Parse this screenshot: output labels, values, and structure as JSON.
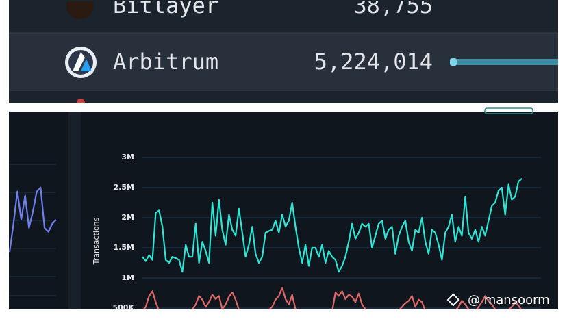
{
  "table": {
    "rows": [
      [
        "Bitlayer",
        "38,755"
      ],
      [
        "Arbitrum",
        "5,224,014"
      ]
    ]
  },
  "watermark": "@ mansoorm",
  "chart_data": [
    {
      "type": "line",
      "y_label": "Transactions",
      "ylim": [
        400000,
        3200000
      ],
      "yticks": [
        {
          "value": 500000,
          "label": "500K"
        },
        {
          "value": 1000000,
          "label": "1M"
        },
        {
          "value": 1500000,
          "label": "1.5M"
        },
        {
          "value": 2000000,
          "label": "2M"
        },
        {
          "value": 2500000,
          "label": "2.5M"
        },
        {
          "value": 3000000,
          "label": "3M"
        }
      ],
      "grid": true,
      "series": [
        {
          "color": "#2ee6d6",
          "values": [
            1350000,
            1280000,
            1380000,
            1300000,
            2080000,
            2120000,
            1850000,
            1300000,
            1250000,
            1350000,
            1330000,
            1300000,
            1100000,
            1550000,
            1350000,
            1350000,
            1900000,
            1250000,
            1600000,
            1450000,
            1250000,
            2250000,
            1700000,
            2300000,
            1800000,
            1550000,
            2050000,
            1800000,
            1700000,
            2150000,
            1750000,
            1350000,
            1550000,
            1850000,
            1400000,
            1250000,
            1350000,
            1750000,
            1780000,
            1800000,
            1950000,
            1750000,
            2050000,
            1850000,
            1950000,
            2250000,
            1850000,
            1500000,
            1250000,
            1550000,
            1200000,
            1500000,
            1500000,
            1350000,
            1550000,
            1250000,
            1450000,
            1350000,
            1300000,
            1100000,
            1200000,
            1350000,
            1600000,
            1900000,
            1650000,
            1750000,
            1900000,
            1850000,
            1900000,
            1500000,
            1700000,
            1900000,
            1950000,
            1650000,
            1800000,
            1850000,
            1400000,
            1700000,
            1850000,
            1950000,
            1600000,
            1450000,
            1800000,
            1750000,
            2000000,
            1600000,
            1400000,
            1800000,
            1750000,
            1550000,
            1300000,
            1750000,
            1850000,
            2050000,
            1600000,
            1850000,
            1700000,
            2350000,
            1750000,
            1650000,
            1800000,
            1600000,
            1850000,
            1700000,
            1950000,
            2200000,
            2250000,
            2450000,
            2500000,
            2050000,
            2550000,
            2300000,
            2350000,
            2600000,
            2650000
          ]
        },
        {
          "color": "#e06a6a",
          "values": [
            450000,
            520000,
            700000,
            780000,
            600000,
            450000,
            420000,
            430000,
            460000,
            440000,
            420000,
            430000,
            440000,
            420000,
            450000,
            480000,
            560000,
            700000,
            640000,
            520000,
            600000,
            720000,
            650000,
            700000,
            480000,
            560000,
            690000,
            760000,
            640000,
            470000,
            430000,
            420000,
            440000,
            450000,
            420000,
            430000,
            410000,
            440000,
            470000,
            520000,
            640000,
            700000,
            840000,
            650000,
            560000,
            720000,
            480000,
            430000,
            420000,
            440000,
            420000,
            430000,
            450000,
            440000,
            420000,
            410000,
            430000,
            440000,
            760000,
            700000,
            780000,
            650000,
            720000,
            690000,
            600000,
            740000,
            560000,
            480000,
            430000,
            420000,
            440000,
            430000,
            420000,
            410000,
            430000,
            450000,
            440000,
            460000,
            520000,
            580000,
            620000,
            700000,
            520000,
            640000,
            600000,
            450000,
            430000,
            420000,
            440000,
            450000,
            420000,
            440000,
            430000,
            450000,
            460000,
            520000,
            620000,
            560000,
            480000,
            430000,
            440000,
            520000,
            600000,
            700000,
            620000,
            560000,
            480000,
            440000,
            430000,
            450000,
            470000,
            520000,
            600000,
            540000,
            460000
          ]
        }
      ]
    },
    {
      "type": "line",
      "ylim": [
        0,
        100
      ],
      "series": [
        {
          "color": "#6f7ff0",
          "values": [
            10,
            45,
            85,
            50,
            80,
            40,
            60,
            85,
            90,
            40,
            35,
            45,
            50
          ]
        }
      ]
    }
  ]
}
